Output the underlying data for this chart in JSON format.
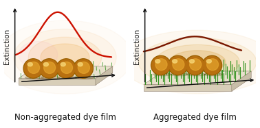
{
  "bg_color": "#ffffff",
  "panel_titles": [
    "Non-aggregated dye film",
    "Aggregated dye film"
  ],
  "ylabel": "Extinction",
  "title_fontsize": 8.5,
  "ylabel_fontsize": 7.5,
  "sphere_color_outer": "#b87010",
  "sphere_color_inner": "#e8a830",
  "sphere_color_mid": "#d09020",
  "sphere_highlight": "#f8d878",
  "platform_top": "#e8e0cc",
  "platform_front": "#d8ceb8",
  "platform_right": "#c8bea8",
  "platform_edge": "#908070",
  "dye_color": "#2a9018",
  "dye_dark": "#1a6010",
  "curve_left_color": "#cc1100",
  "curve_right_color": "#7a1800",
  "arrow_color": "#111111"
}
